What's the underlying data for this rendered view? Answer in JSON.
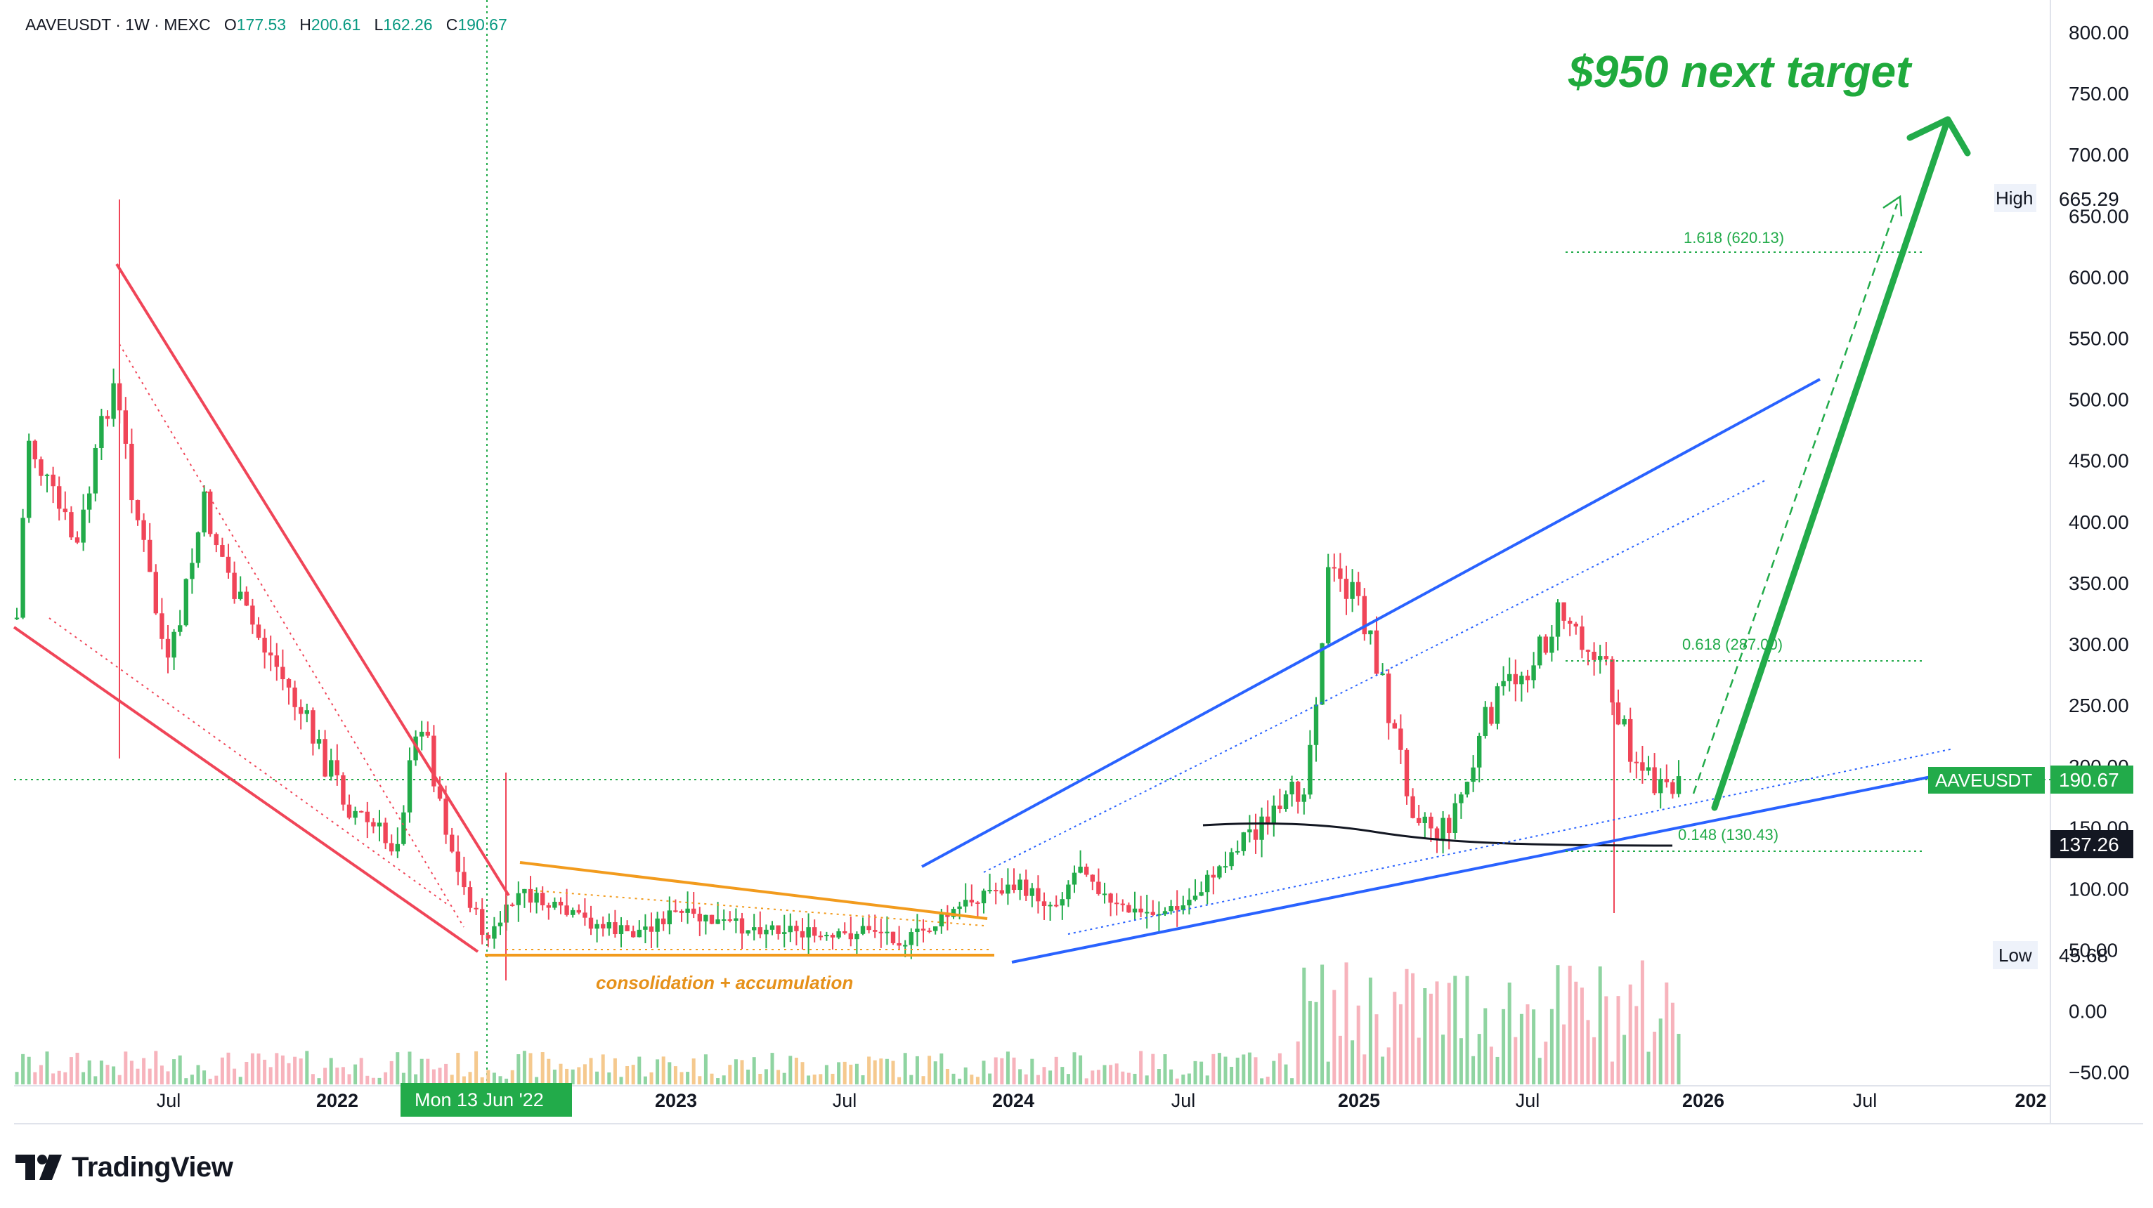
{
  "header": {
    "symbol_line": "AAVEUSDT · 1W · MEXC",
    "o_label": "O",
    "o_value": "177.53",
    "h_label": "H",
    "h_value": "200.61",
    "l_label": "L",
    "l_value": "162.26",
    "c_label": "C",
    "c_value": "190.67"
  },
  "brand": {
    "name": "TradingView",
    "icon": "tradingview-logo-icon"
  },
  "colors": {
    "up": "#22ab4a",
    "down": "#f04558",
    "blue": "#2962ff",
    "orange": "#f29b1d",
    "green_text": "#1faa3c"
  },
  "annotations": {
    "target": "$950 next target",
    "consolidation": "consolidation + accumulation",
    "fib_1618": "1.618 (620.13)",
    "fib_0618": "0.618 (287.00)",
    "fib_0148": "0.148 (130.43)"
  },
  "price_scale": {
    "ticks": [
      "800.00",
      "750.00",
      "700.00",
      "650.00",
      "600.00",
      "550.00",
      "500.00",
      "450.00",
      "400.00",
      "350.00",
      "300.00",
      "250.00",
      "200.00",
      "150.00",
      "100.00",
      "50.00",
      "0.00",
      "−50.00"
    ],
    "high_label": "High",
    "high_value": "665.29",
    "low_label": "Low",
    "low_value": "45.68",
    "last_symbol": "AAVEUSDT",
    "last_value": "190.67",
    "ma_value": "137.26"
  },
  "time_scale": {
    "ticks": [
      "Jul",
      "2022",
      "2023",
      "Jul",
      "2024",
      "Jul",
      "2025",
      "Jul",
      "2026",
      "Jul",
      "202"
    ],
    "crosshair_label": "Mon 13 Jun '22"
  },
  "chart_data": {
    "type": "candlestick",
    "title": "AAVEUSDT · 1W · MEXC",
    "interval": "1W",
    "ylim": [
      -50,
      810
    ],
    "x_range": [
      "2021-04",
      "2027-01"
    ],
    "grid": false,
    "last_close": 190.67,
    "high": 665.29,
    "low": 45.68,
    "fib_levels": [
      {
        "ratio": 1.618,
        "price": 620.13
      },
      {
        "ratio": 0.618,
        "price": 287.0
      },
      {
        "ratio": 0.148,
        "price": 130.43
      }
    ],
    "moving_average_last": 137.26,
    "target_price": 950,
    "key_points": [
      {
        "date": "2021-05",
        "price": 665
      },
      {
        "date": "2022-06",
        "price": 46
      },
      {
        "date": "2024-12",
        "price": 400
      },
      {
        "date": "2025-08",
        "price": 385
      },
      {
        "date": "2025-12",
        "price": 190.67
      }
    ]
  }
}
